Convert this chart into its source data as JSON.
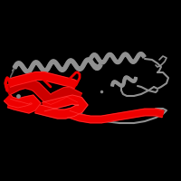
{
  "background_color": "#000000",
  "gray_color": "#909090",
  "gray_dark": "#606060",
  "red_color": "#cc0000",
  "bright_red": "#ee0000",
  "figsize": [
    2.0,
    2.0
  ],
  "dpi": 100,
  "xlim": [
    0.0,
    1.0
  ],
  "ylim": [
    0.0,
    1.0
  ]
}
